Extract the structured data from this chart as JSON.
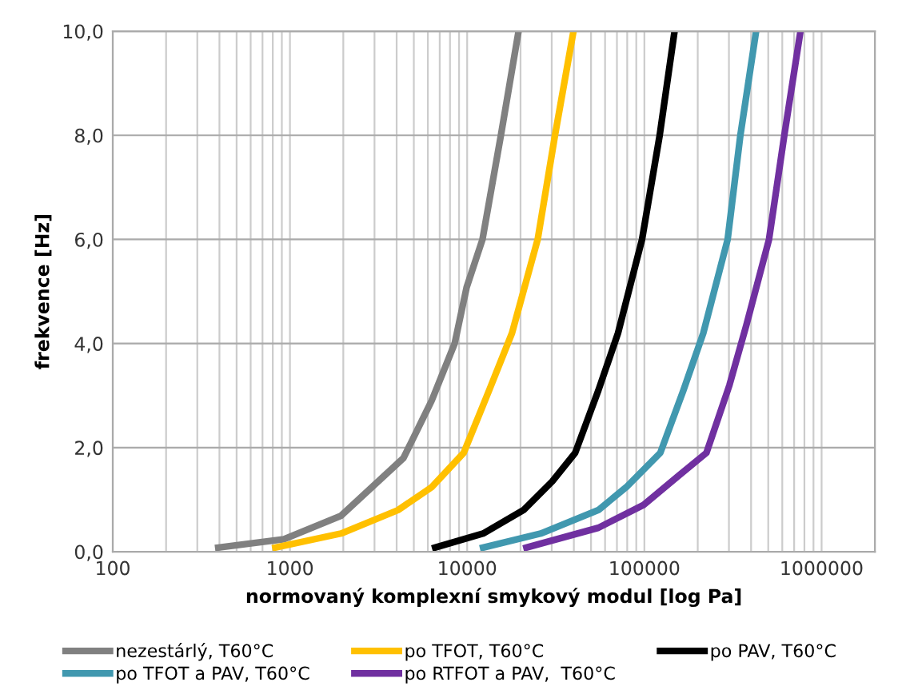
{
  "chart_data": {
    "type": "line",
    "xlabel": "normovaný komplexní smykový modul [log Pa]",
    "ylabel": "frekvence [Hz]",
    "log": "x",
    "grid": true,
    "legend": "bottom",
    "marker": "none",
    "line_style": "solid",
    "xlim": [
      100,
      2000000
    ],
    "xticks": [
      100,
      1000,
      10000,
      100000,
      1000000
    ],
    "ylim": [
      0,
      10
    ],
    "yticks": [
      {
        "value": 0,
        "label": "0,0"
      },
      {
        "value": 2,
        "label": "2,0"
      },
      {
        "value": 4,
        "label": "4,0"
      },
      {
        "value": 6,
        "label": "6,0"
      },
      {
        "value": 8,
        "label": "8,0"
      },
      {
        "value": 10,
        "label": "10,0"
      }
    ],
    "series": [
      {
        "name": "nezestárlý, T60°C",
        "color": "#808080",
        "x": [
          394,
          925,
          1940,
          4370,
          6300,
          8500,
          9930,
          12200,
          15500,
          19500
        ],
        "values": [
          0.08,
          0.24,
          0.69,
          1.8,
          2.9,
          4.0,
          5.08,
          6,
          8,
          10
        ]
      },
      {
        "name": "po TFOT, T60°C",
        "color": "#ffc000",
        "x": [
          828,
          1940,
          4070,
          6300,
          9560,
          13300,
          17900,
          25000,
          31300,
          39800
        ],
        "values": [
          0.08,
          0.35,
          0.8,
          1.24,
          1.9,
          3.1,
          4.2,
          6,
          8,
          10
        ]
      },
      {
        "name": "po PAV, T60°C",
        "color": "#000000",
        "x": [
          6600,
          12300,
          20800,
          30200,
          40700,
          55000,
          71000,
          97000,
          122000,
          148000
        ],
        "values": [
          0.08,
          0.35,
          0.8,
          1.35,
          1.9,
          3.1,
          4.2,
          6,
          8,
          10
        ]
      },
      {
        "name": "po TFOT a PAV, T60°C",
        "color": "#4198af",
        "x": [
          12300,
          26000,
          55000,
          79000,
          123000,
          166000,
          215000,
          295000,
          348000,
          427000
        ],
        "values": [
          0.08,
          0.35,
          0.8,
          1.24,
          1.9,
          3.1,
          4.2,
          6,
          8,
          10
        ]
      },
      {
        "name": "po RTFOT a PAV,  T60°C",
        "color": "#7030a0",
        "x": [
          21600,
          55000,
          99000,
          156000,
          224000,
          302000,
          376000,
          505000,
          616000,
          760000
        ],
        "values": [
          0.08,
          0.46,
          0.9,
          1.46,
          1.9,
          3.2,
          4.35,
          6,
          8,
          10
        ]
      }
    ]
  }
}
